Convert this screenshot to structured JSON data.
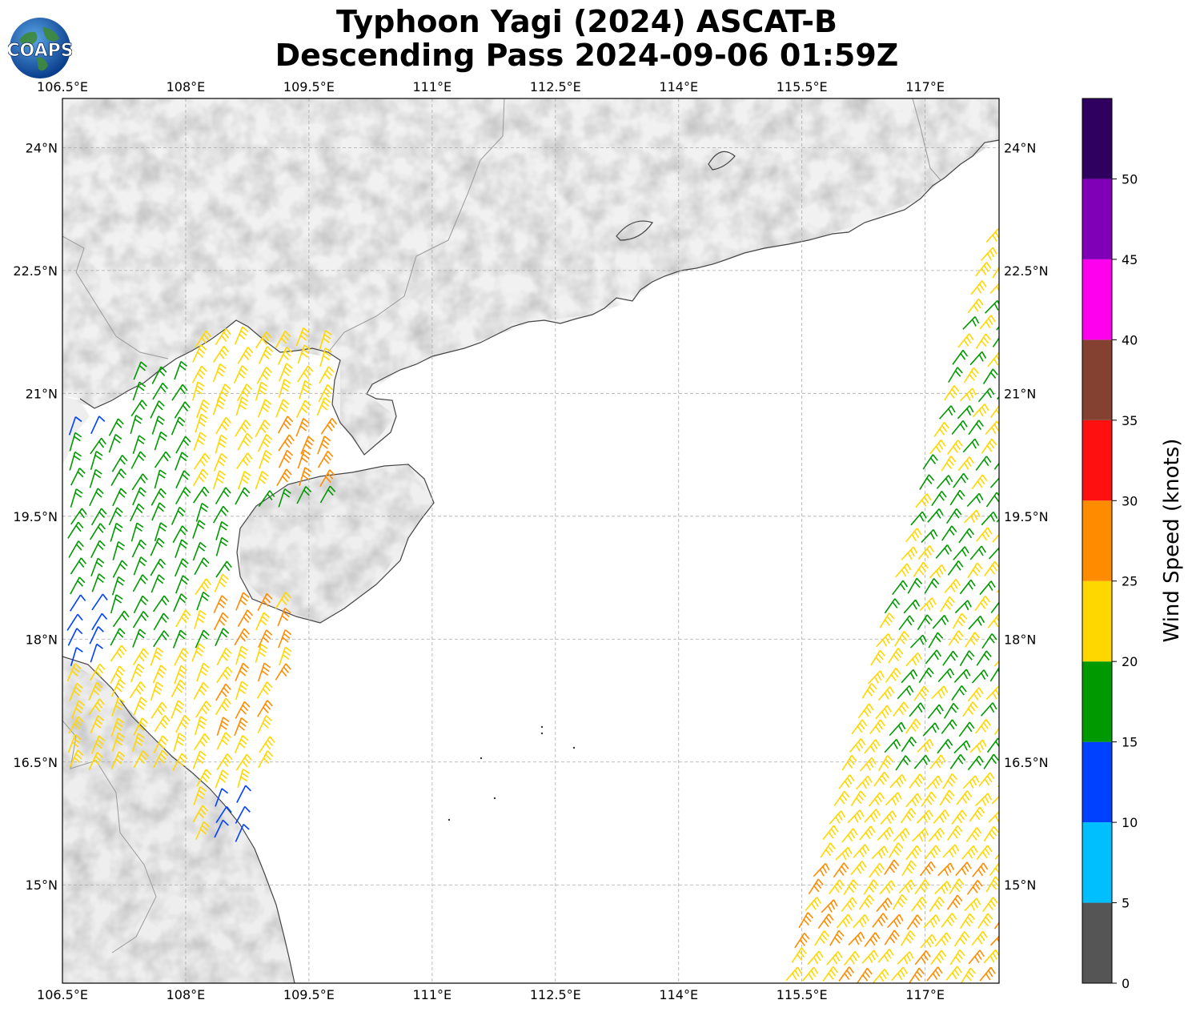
{
  "title": {
    "line1": "Typhoon Yagi (2024) ASCAT-B",
    "line2": "Descending Pass 2024-09-06 01:59Z"
  },
  "logo": {
    "text": "COAPS",
    "icon": "globe-logo-icon"
  },
  "map": {
    "lon_range": [
      106.5,
      117.9
    ],
    "lat_range": [
      13.8,
      24.6
    ],
    "lon_ticks": [
      "106.5°E",
      "108°E",
      "109.5°E",
      "111°E",
      "112.5°E",
      "114°E",
      "115.5°E",
      "117°E"
    ],
    "lon_values": [
      106.5,
      108,
      109.5,
      111,
      112.5,
      114,
      115.5,
      117
    ],
    "lat_ticks": [
      "24°N",
      "22.5°N",
      "21°N",
      "19.5°N",
      "18°N",
      "16.5°N",
      "15°N"
    ],
    "lat_values": [
      24,
      22.5,
      21,
      19.5,
      18,
      16.5,
      15
    ],
    "gridlines": true
  },
  "colorbar": {
    "label": "Wind Speed (knots)",
    "ticks": [
      "0",
      "5",
      "10",
      "15",
      "20",
      "25",
      "30",
      "35",
      "40",
      "45",
      "50"
    ],
    "bins": [
      {
        "from": 0,
        "to": 5,
        "color": "#555555"
      },
      {
        "from": 5,
        "to": 10,
        "color": "#00bfff"
      },
      {
        "from": 10,
        "to": 15,
        "color": "#0040ff"
      },
      {
        "from": 15,
        "to": 20,
        "color": "#009900"
      },
      {
        "from": 20,
        "to": 25,
        "color": "#ffd700"
      },
      {
        "from": 25,
        "to": 30,
        "color": "#ff8c00"
      },
      {
        "from": 30,
        "to": 35,
        "color": "#ff1010"
      },
      {
        "from": 35,
        "to": 40,
        "color": "#844030"
      },
      {
        "from": 40,
        "to": 45,
        "color": "#ff00ee"
      },
      {
        "from": 45,
        "to": 50,
        "color": "#8000b8"
      },
      {
        "from": 50,
        "to": 55,
        "color": "#300060"
      }
    ]
  }
}
